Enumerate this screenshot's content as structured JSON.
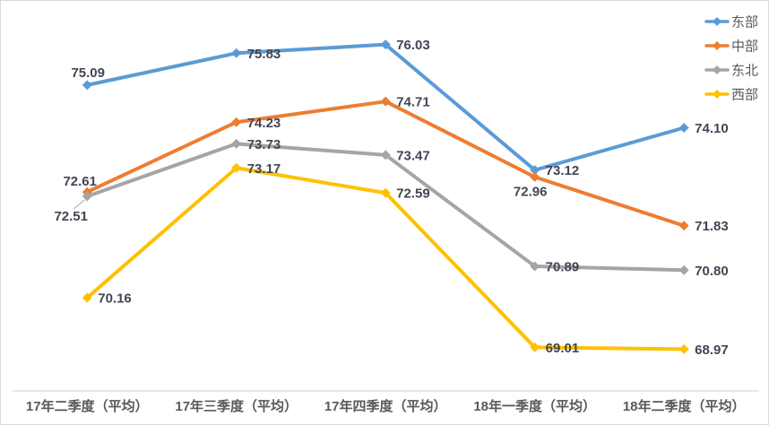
{
  "chart_data": {
    "type": "line",
    "title": "",
    "xlabel": "",
    "ylabel": "",
    "ylim": [
      68,
      77
    ],
    "grid": false,
    "legend_position": "top-right",
    "marker": "diamond",
    "categories": [
      "17年二季度（平均）",
      "17年三季度（平均）",
      "17年四季度（平均）",
      "18年一季度（平均）",
      "18年二季度（平均）"
    ],
    "series": [
      {
        "name": "东部",
        "color": "#5B9BD5",
        "values": [
          75.09,
          75.83,
          76.03,
          73.12,
          74.1
        ],
        "label_positions": [
          "above",
          "right",
          "right",
          "right",
          "right"
        ]
      },
      {
        "name": "中部",
        "color": "#ED7D31",
        "values": [
          72.61,
          74.23,
          74.71,
          72.96,
          71.83
        ],
        "label_positions": [
          "above-left",
          "right",
          "right",
          "below",
          "right"
        ]
      },
      {
        "name": "东北",
        "color": "#A5A5A5",
        "values": [
          72.51,
          73.73,
          73.47,
          70.89,
          70.8
        ],
        "label_positions": [
          "below-left-leader",
          "right",
          "right",
          "right",
          "right"
        ]
      },
      {
        "name": "西部",
        "color": "#FFC000",
        "values": [
          70.16,
          73.17,
          72.59,
          69.01,
          68.97
        ],
        "label_positions": [
          "right",
          "right",
          "right",
          "right",
          "right"
        ]
      }
    ],
    "colors": {
      "axis_line": "#D9D9D9",
      "data_label": "#404653",
      "axis_label": "#595959",
      "legend_label": "#595959",
      "background": "#FFFFFF"
    }
  }
}
